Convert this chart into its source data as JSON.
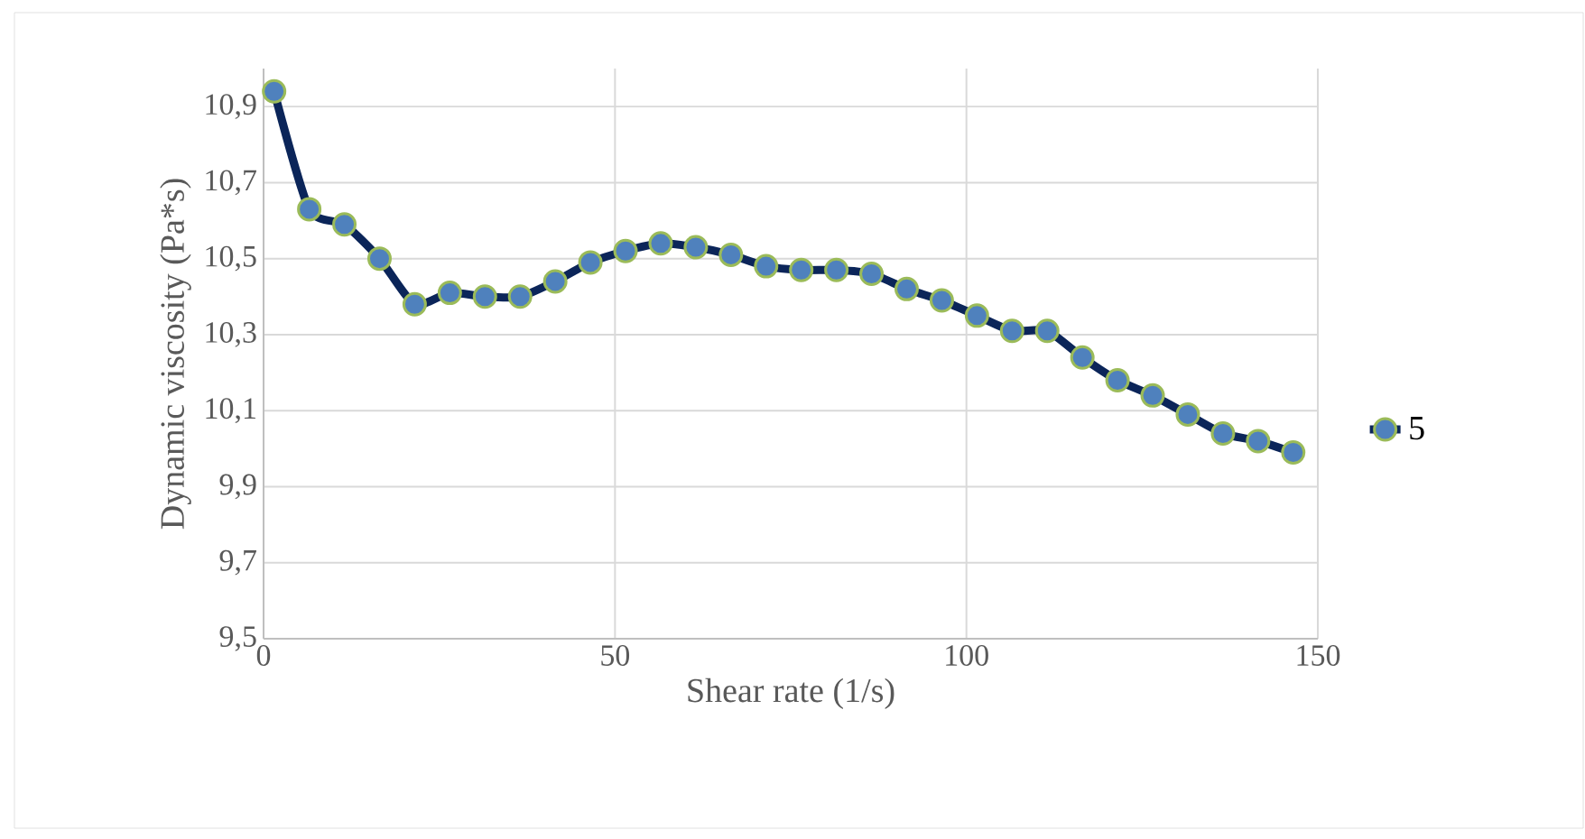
{
  "chart_data": {
    "type": "line",
    "xlabel": "Shear rate (1/s)",
    "ylabel": "Dynamic viscosity (Pa*s)",
    "x": [
      1.5,
      6.5,
      11.5,
      16.5,
      21.5,
      26.5,
      31.5,
      36.5,
      41.5,
      46.5,
      51.5,
      56.5,
      61.5,
      66.5,
      71.5,
      76.5,
      81.5,
      86.5,
      91.5,
      96.5,
      101.5,
      106.5,
      111.5,
      116.5,
      121.5,
      126.5,
      131.5,
      136.5,
      141.5,
      146.5
    ],
    "series": [
      {
        "name": "5",
        "color": "#0b2559",
        "values": [
          10.94,
          10.63,
          10.59,
          10.5,
          10.38,
          10.41,
          10.4,
          10.4,
          10.44,
          10.49,
          10.52,
          10.54,
          10.53,
          10.51,
          10.48,
          10.47,
          10.47,
          10.46,
          10.42,
          10.39,
          10.35,
          10.31,
          10.31,
          10.24,
          10.18,
          10.14,
          10.09,
          10.04,
          10.02,
          9.99
        ]
      }
    ],
    "xlim": [
      0,
      150
    ],
    "xticks": [
      0,
      50,
      100,
      150
    ],
    "ylim": [
      9.5,
      11.0
    ],
    "yticks": [
      {
        "value": 9.5,
        "label": "9,5"
      },
      {
        "value": 9.7,
        "label": "9,7"
      },
      {
        "value": 9.9,
        "label": "9,9"
      },
      {
        "value": 10.1,
        "label": "10,1"
      },
      {
        "value": 10.3,
        "label": "10,3"
      },
      {
        "value": 10.5,
        "label": "10,5"
      },
      {
        "value": 10.7,
        "label": "10,7"
      },
      {
        "value": 10.9,
        "label": "10,9"
      }
    ],
    "grid": true,
    "legend": "right",
    "marker": "circle",
    "line_style": "solid"
  }
}
